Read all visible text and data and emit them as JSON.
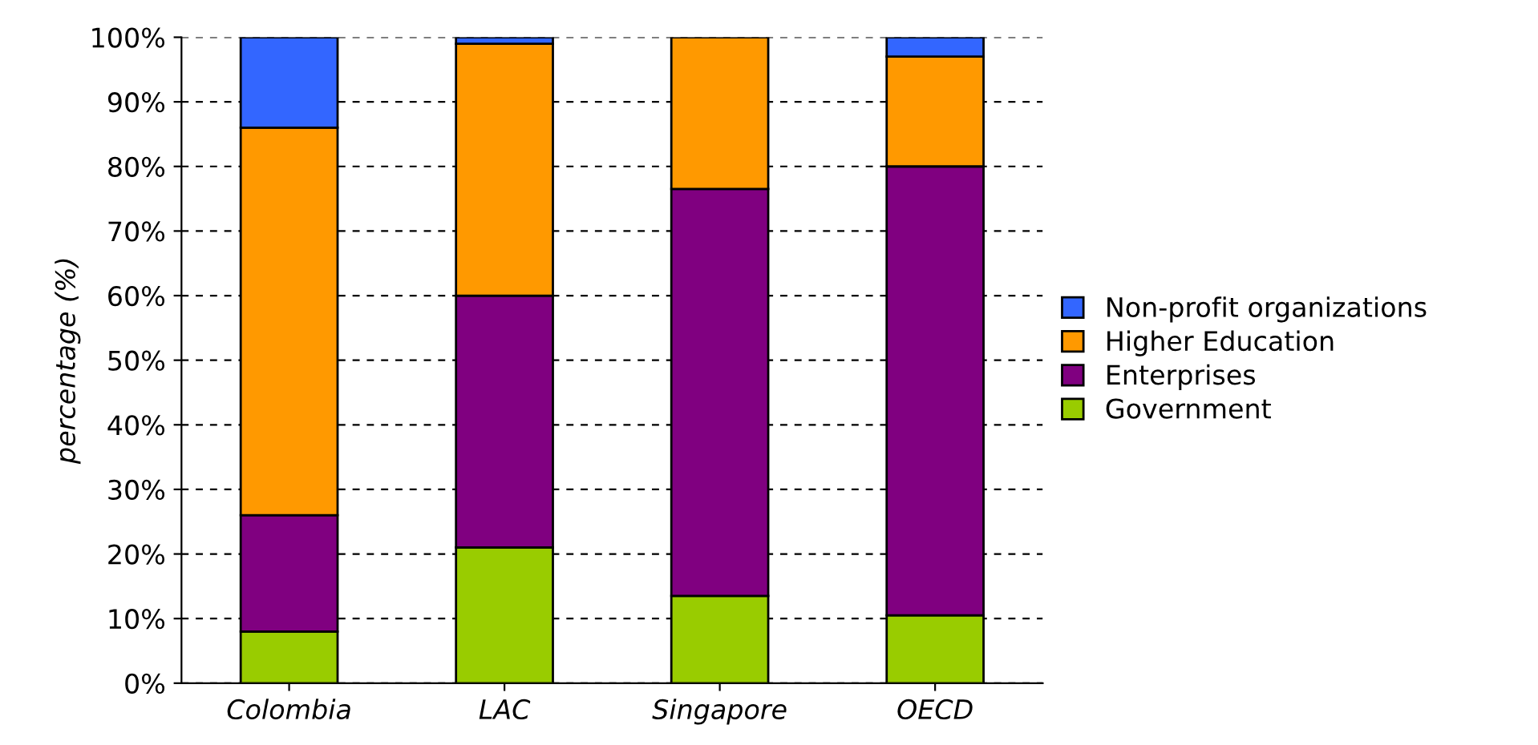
{
  "chart_data": {
    "type": "bar",
    "stacked": true,
    "ylabel": "percentage (%)",
    "categories": [
      "Colombia",
      "LAC",
      "Singapore",
      "OECD"
    ],
    "series": [
      {
        "name": "Government",
        "color": "#99cc00",
        "values": [
          8,
          21,
          13.5,
          10.5
        ]
      },
      {
        "name": "Enterprises",
        "color": "#800080",
        "values": [
          18,
          39,
          63,
          69.5
        ]
      },
      {
        "name": "Higher Education",
        "color": "#ff9900",
        "values": [
          60,
          39,
          23.5,
          17
        ]
      },
      {
        "name": "Non-profit organizations",
        "color": "#3366ff",
        "values": [
          14,
          1,
          null,
          3
        ]
      }
    ],
    "ylim": [
      0,
      100
    ],
    "yticks": [
      {
        "value": 0,
        "label": "0%"
      },
      {
        "value": 10,
        "label": "10%"
      },
      {
        "value": 20,
        "label": "20%"
      },
      {
        "value": 30,
        "label": "30%"
      },
      {
        "value": 40,
        "label": "40%"
      },
      {
        "value": 50,
        "label": "50%"
      },
      {
        "value": 60,
        "label": "60%"
      },
      {
        "value": 70,
        "label": "70%"
      },
      {
        "value": 80,
        "label": "80%"
      },
      {
        "value": 90,
        "label": "90%"
      },
      {
        "value": 100,
        "label": "100%"
      }
    ],
    "grid": "y",
    "legend": "right"
  }
}
